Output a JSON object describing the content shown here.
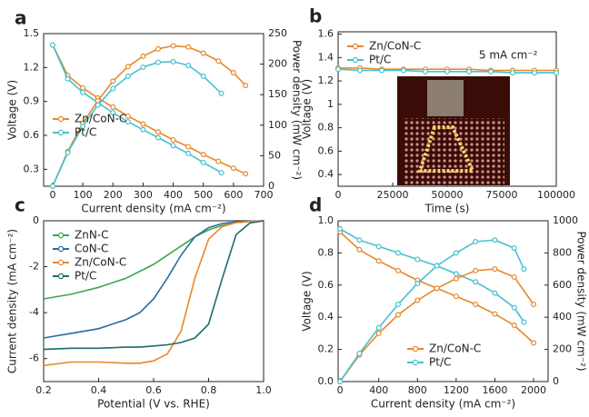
{
  "chart_data": [
    {
      "type": "line",
      "panel": "a",
      "xlabel": "Current density (mA cm⁻²)",
      "ylabel": "Voltage (V)",
      "y2label": "Power density (mW cm⁻²)",
      "xlim": [
        -30,
        700
      ],
      "xticks": [
        0,
        100,
        200,
        300,
        400,
        500,
        600,
        700
      ],
      "ylim": [
        0.15,
        1.5
      ],
      "yticks": [
        0.3,
        0.6,
        0.9,
        1.2,
        1.5
      ],
      "y2lim": [
        0,
        250
      ],
      "y2ticks": [
        0,
        50,
        100,
        150,
        200,
        250
      ],
      "legend": "lower left",
      "markers": true,
      "series": [
        {
          "name": "Zn/CoN-C",
          "color": "#e8872a",
          "x": [
            0,
            50,
            100,
            150,
            200,
            250,
            300,
            350,
            400,
            450,
            500,
            550,
            600,
            640
          ],
          "values": [
            1.4,
            1.13,
            1.02,
            0.93,
            0.85,
            0.77,
            0.7,
            0.63,
            0.56,
            0.5,
            0.43,
            0.37,
            0.31,
            0.26
          ]
        },
        {
          "name": "Pt/C",
          "color": "#45c1d0",
          "x": [
            0,
            50,
            100,
            150,
            200,
            250,
            300,
            350,
            400,
            450,
            500,
            560
          ],
          "values": [
            1.4,
            1.1,
            0.98,
            0.89,
            0.8,
            0.72,
            0.65,
            0.58,
            0.51,
            0.44,
            0.36,
            0.27
          ]
        },
        {
          "name": "Zn/CoN-C",
          "color": "#e8872a",
          "axis": "y2",
          "x": [
            0,
            50,
            100,
            150,
            200,
            250,
            300,
            350,
            400,
            450,
            500,
            550,
            600,
            640
          ],
          "values": [
            0,
            57,
            103,
            140,
            172,
            196,
            213,
            225,
            230,
            228,
            218,
            205,
            186,
            165
          ]
        },
        {
          "name": "Pt/C",
          "color": "#45c1d0",
          "axis": "y2",
          "x": [
            0,
            50,
            100,
            150,
            200,
            250,
            300,
            350,
            400,
            450,
            500,
            560
          ],
          "values": [
            0,
            55,
            98,
            133,
            160,
            180,
            195,
            203,
            204,
            198,
            180,
            152
          ]
        }
      ]
    },
    {
      "type": "line",
      "panel": "b",
      "xlabel": "Time (s)",
      "ylabel": "Voltage (V)",
      "annotation": "5 mA cm⁻²",
      "xlim": [
        0,
        100000
      ],
      "xticks": [
        0,
        25000,
        50000,
        75000,
        100000
      ],
      "ylim": [
        0.3,
        1.62
      ],
      "yticks": [
        0.4,
        0.6,
        0.8,
        1.0,
        1.2,
        1.4,
        1.6
      ],
      "legend": "upper left",
      "markers": true,
      "series": [
        {
          "name": "Zn/CoN-C",
          "color": "#e8872a",
          "x": [
            0,
            10000,
            20000,
            30000,
            40000,
            50000,
            60000,
            70000,
            80000,
            90000,
            100000
          ],
          "values": [
            1.31,
            1.31,
            1.3,
            1.3,
            1.3,
            1.3,
            1.3,
            1.29,
            1.29,
            1.29,
            1.29
          ]
        },
        {
          "name": "Pt/C",
          "color": "#45c1d0",
          "x": [
            0,
            10000,
            20000,
            30000,
            40000,
            50000,
            60000,
            70000,
            80000,
            90000,
            100000
          ],
          "values": [
            1.3,
            1.29,
            1.29,
            1.29,
            1.28,
            1.28,
            1.28,
            1.28,
            1.27,
            1.27,
            1.27
          ]
        }
      ]
    },
    {
      "type": "line",
      "panel": "c",
      "xlabel": "Potential (V vs. RHE)",
      "ylabel": "Current density (mA cm⁻²)",
      "xlim": [
        0.2,
        1.0
      ],
      "xticks": [
        0.2,
        0.4,
        0.6,
        0.8,
        {
          "value": 1.0,
          "label": "1.0"
        }
      ],
      "ylim": [
        -7,
        0
      ],
      "yticks": [
        -6,
        -4,
        -2,
        0
      ],
      "legend": "upper left",
      "markers": false,
      "series": [
        {
          "name": "ZnN-C",
          "color": "#3aa84a",
          "x": [
            0.2,
            0.3,
            0.4,
            0.5,
            0.55,
            0.6,
            0.65,
            0.7,
            0.75,
            0.8,
            0.85,
            0.9,
            0.95,
            1.0
          ],
          "values": [
            -3.4,
            -3.2,
            -2.9,
            -2.5,
            -2.2,
            -1.9,
            -1.5,
            -1.1,
            -0.7,
            -0.4,
            -0.2,
            -0.08,
            -0.03,
            0
          ]
        },
        {
          "name": "CoN-C",
          "color": "#2a6aa0",
          "x": [
            0.2,
            0.3,
            0.4,
            0.5,
            0.55,
            0.6,
            0.65,
            0.7,
            0.75,
            0.8,
            0.85,
            0.9,
            0.95,
            1.0
          ],
          "values": [
            -5.1,
            -4.9,
            -4.7,
            -4.3,
            -4.0,
            -3.4,
            -2.5,
            -1.5,
            -0.7,
            -0.3,
            -0.12,
            -0.05,
            -0.02,
            0
          ]
        },
        {
          "name": "Zn/CoN-C",
          "color": "#e8872a",
          "x": [
            0.2,
            0.3,
            0.4,
            0.5,
            0.55,
            0.6,
            0.65,
            0.7,
            0.75,
            0.8,
            0.85,
            0.9,
            0.95,
            1.0
          ],
          "values": [
            -6.3,
            -6.15,
            -6.15,
            -6.2,
            -6.2,
            -6.1,
            -5.8,
            -4.8,
            -2.5,
            -0.8,
            -0.25,
            -0.08,
            -0.03,
            0
          ]
        },
        {
          "name": "Pt/C",
          "color": "#1d6b6b",
          "x": [
            0.2,
            0.3,
            0.4,
            0.5,
            0.55,
            0.6,
            0.65,
            0.7,
            0.75,
            0.8,
            0.85,
            0.9,
            0.95,
            1.0
          ],
          "values": [
            -5.6,
            -5.55,
            -5.55,
            -5.5,
            -5.5,
            -5.45,
            -5.4,
            -5.3,
            -5.1,
            -4.5,
            -2.5,
            -0.6,
            -0.1,
            0
          ]
        }
      ]
    },
    {
      "type": "line",
      "panel": "d",
      "xlabel": "Current density (mA cm⁻²)",
      "ylabel": "Voltage (V)",
      "y2label": "Power density (mW cm⁻²)",
      "xlim": [
        -20,
        2150
      ],
      "xticks": [
        0,
        400,
        800,
        1200,
        1600,
        2000
      ],
      "ylim": [
        0,
        1.0
      ],
      "yticks": [
        {
          "value": 0,
          "label": "0.0"
        },
        0.2,
        0.4,
        0.6,
        0.8,
        {
          "value": 1.0,
          "label": "1.0"
        }
      ],
      "y2lim": [
        0,
        1000
      ],
      "y2ticks": [
        0,
        200,
        400,
        600,
        800,
        1000
      ],
      "legend": "lower right",
      "markers": true,
      "series": [
        {
          "name": "Zn/CoN-C",
          "color": "#e8872a",
          "x": [
            0,
            200,
            400,
            600,
            800,
            1000,
            1200,
            1400,
            1600,
            1800,
            2000
          ],
          "values": [
            0.93,
            0.82,
            0.75,
            0.69,
            0.63,
            0.58,
            0.53,
            0.48,
            0.42,
            0.35,
            0.24
          ]
        },
        {
          "name": "Pt/C",
          "color": "#45c1d0",
          "x": [
            0,
            200,
            400,
            600,
            800,
            1000,
            1200,
            1400,
            1600,
            1800,
            1900
          ],
          "values": [
            0.95,
            0.88,
            0.84,
            0.8,
            0.76,
            0.72,
            0.67,
            0.62,
            0.55,
            0.46,
            0.37
          ]
        },
        {
          "name": "Zn/CoN-C",
          "color": "#e8872a",
          "axis": "y2",
          "x": [
            0,
            200,
            400,
            600,
            800,
            1000,
            1200,
            1400,
            1600,
            1800,
            2000
          ],
          "values": [
            0,
            165,
            300,
            415,
            505,
            580,
            640,
            690,
            700,
            650,
            480
          ]
        },
        {
          "name": "Pt/C",
          "color": "#45c1d0",
          "axis": "y2",
          "x": [
            0,
            200,
            400,
            600,
            800,
            1000,
            1200,
            1400,
            1600,
            1800,
            1900
          ],
          "values": [
            0,
            175,
            335,
            480,
            610,
            720,
            800,
            870,
            880,
            830,
            700
          ]
        }
      ]
    }
  ]
}
